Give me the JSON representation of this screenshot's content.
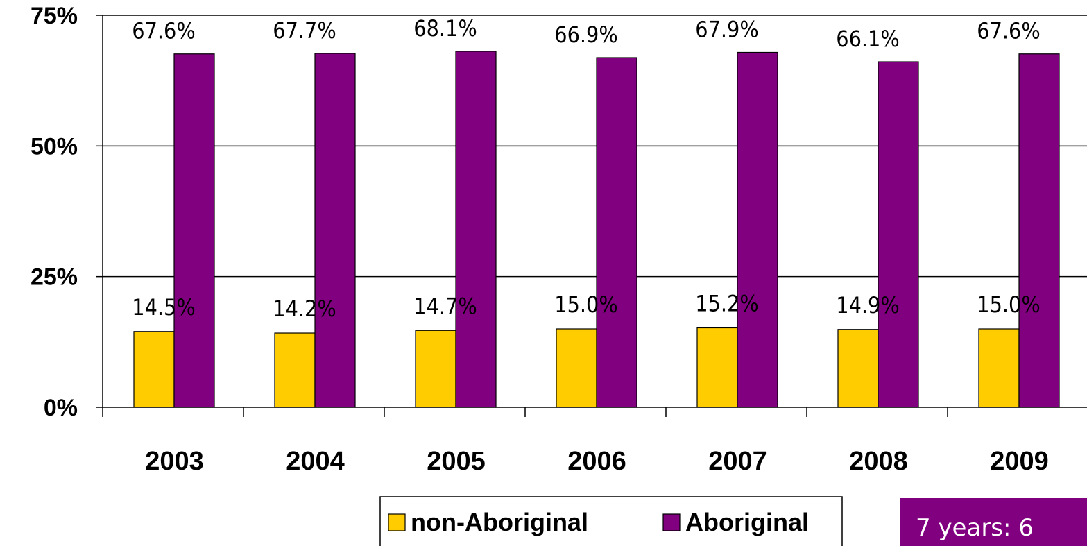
{
  "chart_data": {
    "type": "bar",
    "categories": [
      "2003",
      "2004",
      "2005",
      "2006",
      "2007",
      "2008",
      "2009"
    ],
    "series": [
      {
        "name": "non-Aboriginal",
        "color": "#FFCC00",
        "values": [
          14.5,
          14.2,
          14.7,
          15.0,
          15.2,
          14.9,
          15.0
        ],
        "labels": [
          "14.5%",
          "14.2%",
          "14.7%",
          "15.0%",
          "15.2%",
          "14.9%",
          "15.0%"
        ]
      },
      {
        "name": "Aboriginal",
        "color": "#800080",
        "values": [
          67.6,
          67.7,
          68.1,
          66.9,
          67.9,
          66.1,
          67.6
        ],
        "labels": [
          "67.6%",
          "67.7%",
          "68.1%",
          "66.9%",
          "67.9%",
          "66.1%",
          "67.6%"
        ]
      }
    ],
    "ylim": [
      0,
      75
    ],
    "yticks": [
      {
        "value": 0,
        "label": "0%"
      },
      {
        "value": 25,
        "label": "25%"
      },
      {
        "value": 50,
        "label": "50%"
      },
      {
        "value": 75,
        "label": "75%"
      }
    ],
    "grid": true,
    "legend_position": "bottom"
  },
  "callout": {
    "text": "7 years: 6",
    "background": "#800080",
    "text_color": "#ffffff"
  }
}
